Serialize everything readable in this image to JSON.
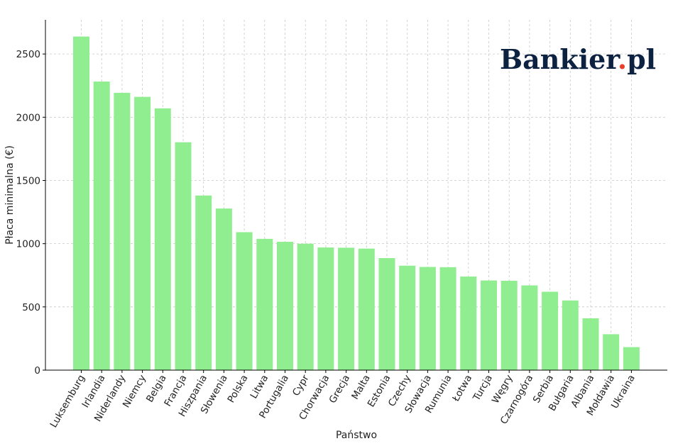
{
  "chart_data": {
    "type": "bar",
    "xlabel": "Państwo",
    "ylabel": "Płaca minimalna (€)",
    "categories": [
      "Luksemburg",
      "Irlandia",
      "Niderlandy",
      "Niemcy",
      "Belgia",
      "Francja",
      "Hiszpania",
      "Słowenia",
      "Polska",
      "Litwa",
      "Portugalia",
      "Cypr",
      "Chorwacja",
      "Grecja",
      "Malta",
      "Estonia",
      "Czechy",
      "Słowacja",
      "Rumunia",
      "Łotwa",
      "Turcja",
      "Węgry",
      "Czarnogóra",
      "Serbia",
      "Bułgaria",
      "Albania",
      "Mołdawia",
      "Ukraina"
    ],
    "values": [
      2638,
      2282,
      2193,
      2161,
      2070,
      1802,
      1381,
      1278,
      1091,
      1038,
      1015,
      1000,
      970,
      968,
      961,
      886,
      826,
      816,
      814,
      740,
      709,
      707,
      670,
      620,
      551,
      410,
      284,
      182
    ],
    "ylim": [
      0,
      2770
    ],
    "yticks": [
      0,
      500,
      1000,
      1500,
      2000,
      2500
    ],
    "grid": true,
    "bar_color": "#90ee90"
  },
  "logo": {
    "text_main": "Bankier",
    "dot": ".",
    "text_suffix": "pl",
    "color": "#0d2140",
    "dot_color": "#e8412b"
  }
}
